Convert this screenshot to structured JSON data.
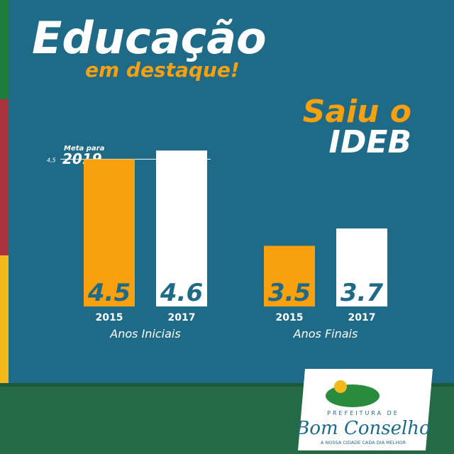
{
  "chart_data": {
    "type": "bar",
    "title": "Educação",
    "subtitle": "em destaque!",
    "headline": [
      "Saiu o",
      "IDEB"
    ],
    "ylim": [
      2.8,
      4.7
    ],
    "colors": [
      "#f8a00d",
      "#ffffff"
    ],
    "groups": [
      {
        "name": "Anos Iniciais",
        "categories": [
          "2015",
          "2017"
        ],
        "values": [
          4.5,
          4.6
        ]
      },
      {
        "name": "Anos Finais",
        "categories": [
          "2015",
          "2017"
        ],
        "values": [
          3.5,
          3.7
        ]
      }
    ],
    "target": {
      "label": "Meta para",
      "year": "2019",
      "value": {
        "value": 4.5,
        "label": "4,5"
      }
    }
  },
  "logo": {
    "top": "PREFEITURA DE",
    "name": "Bom Conselho",
    "slogan": "A NOSSA CIDADE CADA DIA MELHOR"
  }
}
